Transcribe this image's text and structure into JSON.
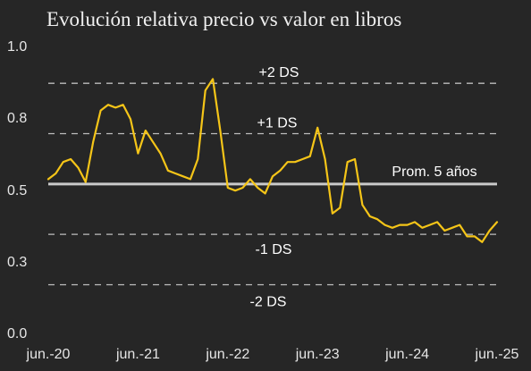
{
  "chart_data": {
    "type": "line",
    "title": "Evolución relativa precio vs valor en libros",
    "ylim": [
      0.0,
      1.0
    ],
    "yticks": [
      {
        "value": 1.0,
        "label": "1.0"
      },
      {
        "value": 0.8,
        "label": "0.8"
      },
      {
        "value": 0.5,
        "label": "0.5"
      },
      {
        "value": 0.3,
        "label": "0.3"
      },
      {
        "value": 0.0,
        "label": "0.0"
      }
    ],
    "xlim": [
      "2020-06",
      "2025-06"
    ],
    "xticks": [
      "jun.-20",
      "jun.-21",
      "jun.-22",
      "jun.-23",
      "jun.-24",
      "jun.-25"
    ],
    "legend": "none",
    "grid": false,
    "series": [
      {
        "color": "#f5c518",
        "x": [
          "2020-06",
          "2020-07",
          "2020-08",
          "2020-09",
          "2020-10",
          "2020-11",
          "2020-12",
          "2021-01",
          "2021-02",
          "2021-03",
          "2021-04",
          "2021-05",
          "2021-06",
          "2021-07",
          "2021-08",
          "2021-09",
          "2021-10",
          "2021-11",
          "2021-12",
          "2022-01",
          "2022-02",
          "2022-03",
          "2022-04",
          "2022-05",
          "2022-06",
          "2022-07",
          "2022-08",
          "2022-09",
          "2022-10",
          "2022-11",
          "2022-12",
          "2023-01",
          "2023-02",
          "2023-03",
          "2023-04",
          "2023-05",
          "2023-06",
          "2023-07",
          "2023-08",
          "2023-09",
          "2023-10",
          "2023-11",
          "2023-12",
          "2024-01",
          "2024-02",
          "2024-03",
          "2024-04",
          "2024-05",
          "2024-06",
          "2024-07",
          "2024-08",
          "2024-09",
          "2024-10",
          "2024-11",
          "2024-12",
          "2025-01",
          "2025-02",
          "2025-03",
          "2025-04",
          "2025-05",
          "2025-06"
        ],
        "y": [
          0.53,
          0.55,
          0.59,
          0.6,
          0.57,
          0.52,
          0.66,
          0.77,
          0.79,
          0.78,
          0.79,
          0.74,
          0.62,
          0.7,
          0.66,
          0.62,
          0.56,
          0.55,
          0.54,
          0.53,
          0.6,
          0.84,
          0.88,
          0.7,
          0.5,
          0.49,
          0.5,
          0.53,
          0.5,
          0.48,
          0.54,
          0.56,
          0.59,
          0.59,
          0.6,
          0.61,
          0.71,
          0.6,
          0.41,
          0.43,
          0.59,
          0.6,
          0.44,
          0.4,
          0.39,
          0.37,
          0.36,
          0.37,
          0.37,
          0.38,
          0.36,
          0.37,
          0.38,
          0.35,
          0.36,
          0.37,
          0.33,
          0.33,
          0.31,
          0.35,
          0.38
        ]
      }
    ],
    "reference_lines": [
      {
        "label": "+2 DS",
        "value": 0.865,
        "style": "dashed",
        "color": "#bdbdbd"
      },
      {
        "label": "+1 DS",
        "value": 0.689,
        "style": "dashed",
        "color": "#bdbdbd"
      },
      {
        "label": "Prom. 5 años",
        "value": 0.513,
        "style": "solid",
        "color": "#c9c9c9"
      },
      {
        "label": "-1 DS",
        "value": 0.337,
        "style": "dashed",
        "color": "#bdbdbd"
      },
      {
        "label": "-2 DS",
        "value": 0.161,
        "style": "dashed",
        "color": "#bdbdbd"
      }
    ]
  }
}
